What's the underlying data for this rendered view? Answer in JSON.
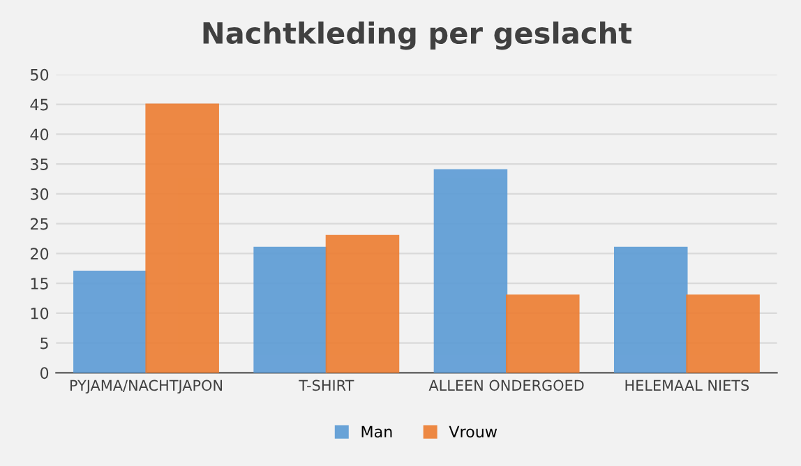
{
  "chart_data": {
    "type": "bar",
    "title": "Nachtkleding per geslacht",
    "categories": [
      "PYJAMA/NACHTJAPON",
      "T-SHIRT",
      "ALLEEN ONDERGOED",
      "HELEMAAL NIETS"
    ],
    "series": [
      {
        "name": "Man",
        "color": "#5b9bd5",
        "values": [
          17,
          21,
          34,
          21
        ]
      },
      {
        "name": "Vrouw",
        "color": "#ed7d31",
        "values": [
          45,
          23,
          13,
          13
        ]
      }
    ],
    "ylim": [
      0,
      50
    ],
    "yticks": [
      0,
      5,
      10,
      15,
      20,
      25,
      30,
      35,
      40,
      45,
      50
    ],
    "grid": "y",
    "legend": "bottom"
  }
}
